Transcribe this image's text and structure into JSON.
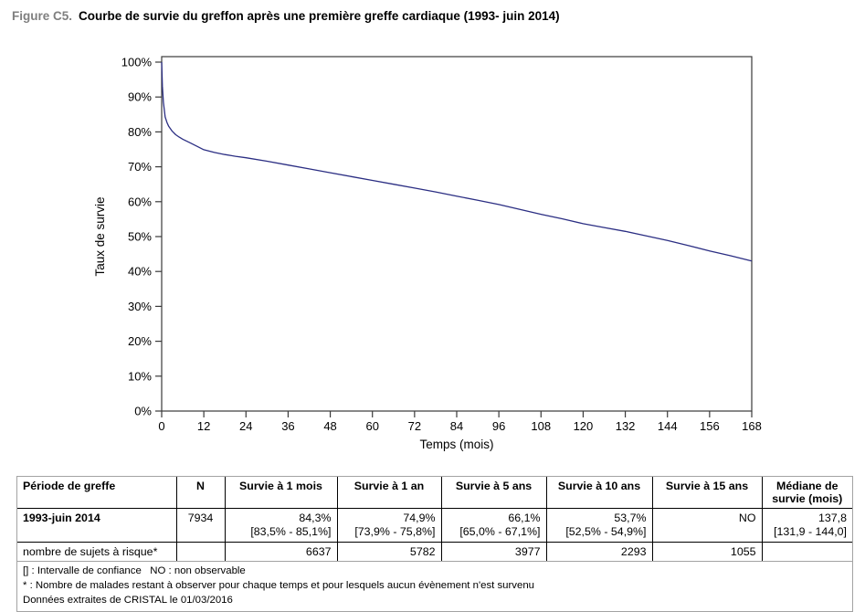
{
  "title": {
    "prefix": "Figure C5.",
    "text": "Courbe de survie du greffon après une première greffe cardiaque (1993- juin 2014)"
  },
  "chart_data": {
    "type": "line",
    "title": "",
    "xlabel": "Temps (mois)",
    "ylabel": "Taux de survie",
    "xlim": [
      0,
      168
    ],
    "ylim": [
      0,
      100
    ],
    "xticks": [
      0,
      12,
      24,
      36,
      48,
      60,
      72,
      84,
      96,
      108,
      120,
      132,
      144,
      156,
      168
    ],
    "yticks": [
      0,
      10,
      20,
      30,
      40,
      50,
      60,
      70,
      80,
      90,
      100
    ],
    "ytick_suffix": "%",
    "grid": false,
    "legend_position": "none",
    "line_color": "#2b2e83",
    "axis_color": "#3a3a3a",
    "series": [
      {
        "name": "Survie du greffon (1993-juin 2014)",
        "x": [
          0,
          0.2,
          0.5,
          1,
          1.5,
          2,
          3,
          4,
          5,
          6,
          8,
          10,
          12,
          15,
          18,
          21,
          24,
          30,
          36,
          42,
          48,
          54,
          60,
          66,
          72,
          78,
          84,
          90,
          96,
          102,
          108,
          114,
          120,
          126,
          132,
          138,
          144,
          150,
          156,
          162,
          168
        ],
        "y": [
          100,
          93,
          88.5,
          84.3,
          82.7,
          81.6,
          80.2,
          79.2,
          78.5,
          77.9,
          76.9,
          75.9,
          74.9,
          74.1,
          73.5,
          73.0,
          72.6,
          71.6,
          70.5,
          69.4,
          68.3,
          67.2,
          66.1,
          65.0,
          63.9,
          62.8,
          61.6,
          60.4,
          59.2,
          57.8,
          56.4,
          55.1,
          53.7,
          52.6,
          51.5,
          50.2,
          48.9,
          47.4,
          45.9,
          44.5,
          43.0
        ]
      }
    ]
  },
  "table": {
    "headers": [
      "Période de greffe",
      "N",
      "Survie à 1 mois",
      "Survie à 1 an",
      "Survie à 5 ans",
      "Survie à 10 ans",
      "Survie à 15 ans",
      "Médiane de survie (mois)"
    ],
    "row_main": {
      "label": "1993-juin 2014",
      "n": "7934",
      "cells": [
        [
          "84,3%",
          "[83,5% - 85,1%]"
        ],
        [
          "74,9%",
          "[73,9% - 75,8%]"
        ],
        [
          "66,1%",
          "[65,0% - 67,1%]"
        ],
        [
          "53,7%",
          "[52,5% - 54,9%]"
        ],
        [
          "NO",
          ""
        ],
        [
          "137,8",
          "[131,9 - 144,0]"
        ]
      ]
    },
    "row_risk": {
      "label": "nombre de sujets à risque*",
      "values": [
        "",
        "6637",
        "5782",
        "3977",
        "2293",
        "1055",
        ""
      ]
    },
    "footnotes": [
      "[] : Intervalle de confiance   NO : non observable",
      "* : Nombre de malades restant à observer pour chaque temps et pour lesquels aucun évènement n'est survenu",
      "Données extraites de CRISTAL le 01/03/2016"
    ]
  }
}
